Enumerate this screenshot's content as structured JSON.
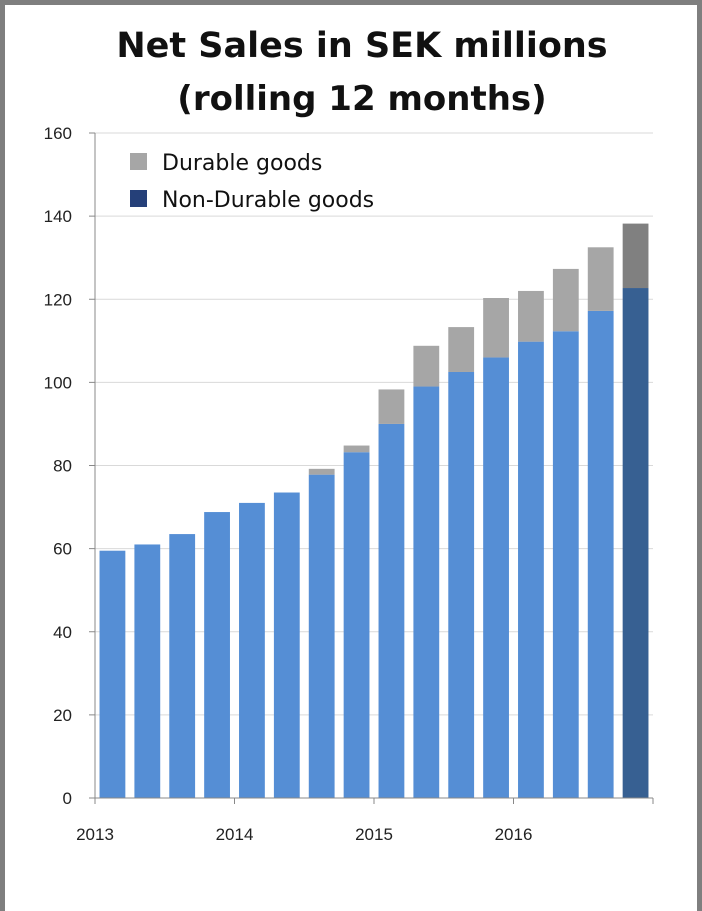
{
  "chart_data": {
    "type": "bar",
    "title": "Net Sales in SEK millions",
    "subtitle": "(rolling 12 months)",
    "xlabel": "",
    "ylabel": "",
    "ylim": [
      0,
      160
    ],
    "yticks": [
      0,
      20,
      40,
      60,
      80,
      100,
      120,
      140,
      160
    ],
    "xtick_labels": [
      "2013",
      "2014",
      "2015",
      "2016"
    ],
    "grid": true,
    "legend_position": "top-left",
    "stacked": true,
    "series": [
      {
        "name": "Non-Durable goods",
        "color": "#558ed5",
        "values": [
          59.5,
          61,
          63.5,
          68.8,
          71,
          73.5,
          77.8,
          83.2,
          90,
          99,
          102.5,
          106,
          109.8,
          112.3,
          117.2,
          122.7
        ]
      },
      {
        "name": "Durable goods",
        "color": "#a6a6a6",
        "values": [
          0,
          0,
          0,
          0,
          0,
          0,
          1.4,
          1.6,
          8.3,
          9.8,
          10.8,
          14.3,
          12.2,
          15,
          15.3,
          15.5
        ]
      }
    ],
    "highlight_last": {
      "non_durable_color": "#376092",
      "durable_color": "#808080"
    },
    "legend_swatch_colors": {
      "Durable goods": "#a6a6a6",
      "Non-Durable goods": "#254079"
    }
  }
}
